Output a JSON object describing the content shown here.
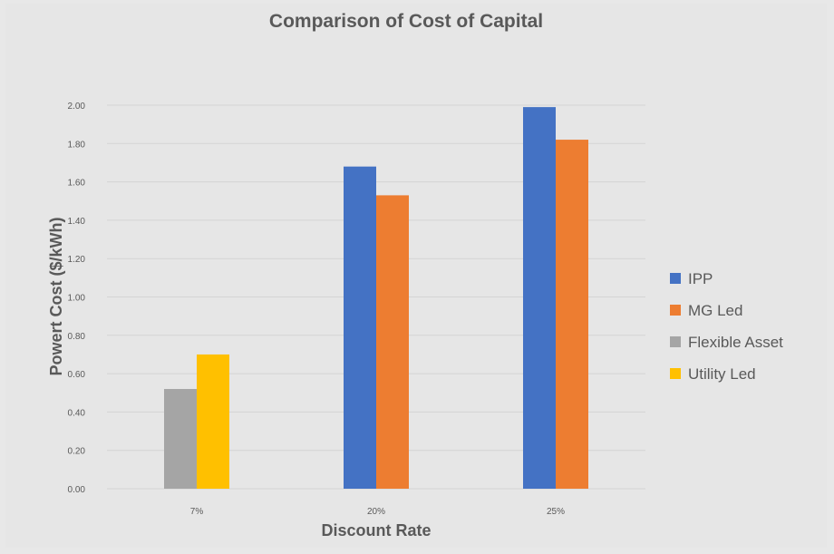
{
  "chart_data": {
    "type": "bar",
    "title": "Comparison of Cost of Capital",
    "xlabel": "Discount Rate",
    "ylabel": "Powert Cost  ($/kWh)",
    "categories": [
      "7%",
      "20%",
      "25%"
    ],
    "ylim": [
      0,
      2.0
    ],
    "yticks": [
      "0.00",
      "0.20",
      "0.40",
      "0.60",
      "0.80",
      "1.00",
      "1.20",
      "1.40",
      "1.60",
      "1.80",
      "2.00"
    ],
    "grid": true,
    "legend_position": "right",
    "series": [
      {
        "name": "IPP",
        "color": "#4472c4",
        "values": [
          null,
          1.68,
          1.99
        ]
      },
      {
        "name": "MG Led",
        "color": "#ed7d31",
        "values": [
          null,
          1.53,
          1.82
        ]
      },
      {
        "name": "Flexible Asset",
        "color": "#a5a5a5",
        "values": [
          0.52,
          null,
          null
        ]
      },
      {
        "name": "Utility Led",
        "color": "#ffc000",
        "values": [
          0.7,
          null,
          null
        ]
      }
    ]
  }
}
